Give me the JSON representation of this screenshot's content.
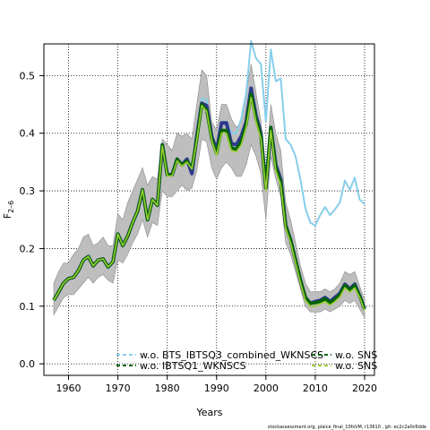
{
  "chart_data": {
    "type": "line",
    "xlabel": "Years",
    "ylabel_main": "F",
    "ylabel_sub": "2–6",
    "xlim": [
      1955,
      2022
    ],
    "ylim": [
      -0.02,
      0.555
    ],
    "xticks": [
      "1960",
      "1970",
      "1980",
      "1990",
      "2000",
      "2010",
      "2020"
    ],
    "yticks": [
      "0.0",
      "0.1",
      "0.2",
      "0.3",
      "0.4",
      "0.5"
    ],
    "grid": true,
    "legend_position": "bottom",
    "footer": "stockassessment.org, plaice_final_10fsVM, r13610 , git: ec2c2a0c6dde",
    "x": [
      1957,
      1958,
      1959,
      1960,
      1961,
      1962,
      1963,
      1964,
      1965,
      1966,
      1967,
      1968,
      1969,
      1970,
      1971,
      1972,
      1973,
      1974,
      1975,
      1976,
      1977,
      1978,
      1979,
      1980,
      1981,
      1982,
      1983,
      1984,
      1985,
      1986,
      1987,
      1988,
      1989,
      1990,
      1991,
      1992,
      1993,
      1994,
      1995,
      1996,
      1997,
      1998,
      1999,
      2000,
      2001,
      2002,
      2003,
      2004,
      2005,
      2006,
      2007,
      2008,
      2009,
      2010,
      2011,
      2012,
      2013,
      2014,
      2015,
      2016,
      2017,
      2018,
      2019,
      2020
    ],
    "band": {
      "color": "#bebebe",
      "lower": [
        0.085,
        0.1,
        0.115,
        0.12,
        0.12,
        0.13,
        0.14,
        0.15,
        0.14,
        0.15,
        0.155,
        0.145,
        0.14,
        0.18,
        0.175,
        0.19,
        0.21,
        0.225,
        0.25,
        0.22,
        0.245,
        0.24,
        0.3,
        0.29,
        0.29,
        0.3,
        0.31,
        0.3,
        0.305,
        0.335,
        0.39,
        0.385,
        0.34,
        0.32,
        0.34,
        0.35,
        0.34,
        0.325,
        0.325,
        0.345,
        0.38,
        0.36,
        0.33,
        0.25,
        0.36,
        0.32,
        0.29,
        0.21,
        0.19,
        0.16,
        0.13,
        0.1,
        0.09,
        0.09,
        0.09,
        0.095,
        0.09,
        0.095,
        0.1,
        0.11,
        0.105,
        0.11,
        0.095,
        0.08
      ],
      "upper": [
        0.14,
        0.16,
        0.175,
        0.175,
        0.19,
        0.2,
        0.22,
        0.225,
        0.205,
        0.21,
        0.22,
        0.205,
        0.205,
        0.26,
        0.25,
        0.28,
        0.3,
        0.32,
        0.34,
        0.31,
        0.325,
        0.32,
        0.39,
        0.38,
        0.37,
        0.4,
        0.395,
        0.4,
        0.39,
        0.45,
        0.51,
        0.5,
        0.42,
        0.405,
        0.45,
        0.45,
        0.425,
        0.41,
        0.42,
        0.47,
        0.52,
        0.47,
        0.42,
        0.33,
        0.45,
        0.4,
        0.37,
        0.28,
        0.25,
        0.21,
        0.17,
        0.14,
        0.125,
        0.125,
        0.125,
        0.13,
        0.125,
        0.13,
        0.14,
        0.16,
        0.155,
        0.16,
        0.135,
        0.11
      ]
    },
    "series": [
      {
        "name": "w.o. BTS_IBTSQ3_combined_WKNSCS",
        "color": "#87ceeb",
        "dash": "",
        "values": [
          0.11,
          0.125,
          0.14,
          0.148,
          0.15,
          0.162,
          0.18,
          0.186,
          0.17,
          0.18,
          0.182,
          0.168,
          0.177,
          0.225,
          0.205,
          0.222,
          0.245,
          0.265,
          0.302,
          0.25,
          0.285,
          0.275,
          0.38,
          0.328,
          0.328,
          0.355,
          0.345,
          0.355,
          0.34,
          0.4,
          0.46,
          0.458,
          0.395,
          0.37,
          0.42,
          0.42,
          0.4,
          0.4,
          0.425,
          0.47,
          0.56,
          0.53,
          0.52,
          0.42,
          0.545,
          0.49,
          0.495,
          0.39,
          0.38,
          0.36,
          0.32,
          0.27,
          0.245,
          0.24,
          0.258,
          0.272,
          0.258,
          0.268,
          0.28,
          0.318,
          0.302,
          0.323,
          0.285,
          0.277
        ]
      },
      {
        "name": "w.o. IBTSQ1_WKNSCS",
        "color": "#2d3a8c",
        "dash": "",
        "values": [
          0.11,
          0.125,
          0.14,
          0.148,
          0.15,
          0.162,
          0.18,
          0.186,
          0.17,
          0.18,
          0.182,
          0.168,
          0.177,
          0.225,
          0.205,
          0.222,
          0.245,
          0.265,
          0.302,
          0.25,
          0.285,
          0.275,
          0.38,
          0.328,
          0.328,
          0.355,
          0.345,
          0.355,
          0.33,
          0.395,
          0.452,
          0.448,
          0.395,
          0.37,
          0.418,
          0.418,
          0.382,
          0.38,
          0.395,
          0.42,
          0.478,
          0.43,
          0.4,
          0.305,
          0.41,
          0.345,
          0.32,
          0.24,
          0.215,
          0.18,
          0.145,
          0.115,
          0.105,
          0.108,
          0.11,
          0.115,
          0.108,
          0.115,
          0.122,
          0.138,
          0.13,
          0.138,
          0.118,
          0.095
        ]
      },
      {
        "name": "w.o. SNS",
        "color": "#006400",
        "dash": "",
        "values": [
          0.11,
          0.125,
          0.14,
          0.148,
          0.15,
          0.162,
          0.18,
          0.186,
          0.17,
          0.18,
          0.182,
          0.168,
          0.177,
          0.225,
          0.205,
          0.222,
          0.245,
          0.265,
          0.302,
          0.25,
          0.285,
          0.275,
          0.38,
          0.328,
          0.328,
          0.355,
          0.345,
          0.352,
          0.34,
          0.39,
          0.45,
          0.44,
          0.39,
          0.365,
          0.405,
          0.405,
          0.375,
          0.372,
          0.385,
          0.415,
          0.468,
          0.425,
          0.395,
          0.305,
          0.41,
          0.34,
          0.315,
          0.24,
          0.215,
          0.18,
          0.145,
          0.115,
          0.105,
          0.106,
          0.108,
          0.113,
          0.106,
          0.112,
          0.12,
          0.136,
          0.128,
          0.136,
          0.118,
          0.095
        ]
      },
      {
        "name": "w.o. SNS",
        "color": "#9acd32",
        "dash": "",
        "values": [
          0.11,
          0.125,
          0.14,
          0.148,
          0.15,
          0.162,
          0.18,
          0.186,
          0.17,
          0.18,
          0.182,
          0.168,
          0.177,
          0.225,
          0.205,
          0.222,
          0.245,
          0.265,
          0.302,
          0.25,
          0.285,
          0.275,
          0.378,
          0.326,
          0.326,
          0.352,
          0.343,
          0.35,
          0.338,
          0.388,
          0.448,
          0.438,
          0.388,
          0.362,
          0.4,
          0.4,
          0.37,
          0.368,
          0.38,
          0.41,
          0.462,
          0.42,
          0.39,
          0.3,
          0.405,
          0.335,
          0.31,
          0.235,
          0.21,
          0.175,
          0.14,
          0.11,
          0.1,
          0.1,
          0.104,
          0.108,
          0.102,
          0.108,
          0.116,
          0.132,
          0.124,
          0.132,
          0.115,
          0.092
        ]
      }
    ],
    "legend_items": [
      {
        "label": "w.o. BTS_IBTSQ3_combined_WKNSCS",
        "color": "#87ceeb",
        "dash": "4,3",
        "col": 0,
        "row": 0
      },
      {
        "label": "w.o. IBTSQ1_WKNSCS",
        "color": "#006400",
        "dash": "4,3",
        "col": 0,
        "row": 1
      },
      {
        "label": "w.o. SNS",
        "color": "#006400",
        "dash": "4,3",
        "col": 1,
        "row": 0
      },
      {
        "label": "w.o. SNS",
        "color": "#9acd32",
        "dash": "4,3",
        "col": 1,
        "row": 1
      }
    ]
  }
}
